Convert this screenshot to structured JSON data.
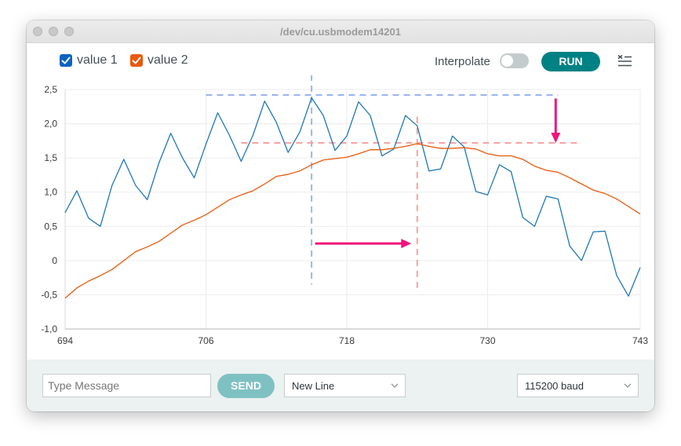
{
  "window": {
    "title": "/dev/cu.usbmodem14201"
  },
  "toolbar": {
    "legend": [
      {
        "label": "value 1",
        "color": "#1f77b4",
        "checked": true
      },
      {
        "label": "value 2",
        "color": "#e8590c",
        "checked": true
      }
    ],
    "interpolate_label": "Interpolate",
    "interpolate_on": false,
    "run_label": "RUN",
    "menu_icon": "clear-list-icon"
  },
  "chart_data": {
    "type": "line",
    "x": [
      694,
      695,
      696,
      697,
      698,
      699,
      700,
      701,
      702,
      703,
      704,
      705,
      706,
      707,
      708,
      709,
      710,
      711,
      712,
      713,
      714,
      715,
      716,
      717,
      718,
      719,
      720,
      721,
      722,
      723,
      724,
      725,
      726,
      727,
      728,
      729,
      730,
      731,
      732,
      733,
      734,
      735,
      736,
      737,
      738,
      739,
      740,
      741,
      742,
      743
    ],
    "xticks": [
      "694",
      "706",
      "718",
      "730",
      "743"
    ],
    "yticks": [
      "2,5",
      "2,0",
      "1,5",
      "1,0",
      "0,5",
      "0",
      "-0,5",
      "-1,0"
    ],
    "ylim": [
      -1.0,
      2.5
    ],
    "xlim": [
      694,
      743
    ],
    "grid": true,
    "series": [
      {
        "name": "value 1",
        "color": "#1f77b4",
        "values": [
          0.7,
          1.02,
          0.62,
          0.5,
          1.1,
          1.48,
          1.1,
          0.89,
          1.43,
          1.86,
          1.5,
          1.21,
          1.7,
          2.16,
          1.83,
          1.45,
          1.83,
          2.33,
          2.02,
          1.58,
          1.88,
          2.38,
          2.12,
          1.61,
          1.82,
          2.32,
          2.12,
          1.53,
          1.63,
          2.12,
          1.97,
          1.31,
          1.34,
          1.82,
          1.66,
          1.01,
          0.96,
          1.4,
          1.3,
          0.63,
          0.5,
          0.94,
          0.9,
          0.21,
          0.0,
          0.42,
          0.43,
          -0.22,
          -0.52,
          -0.1
        ]
      },
      {
        "name": "value 2",
        "color": "#e8590c",
        "values": [
          -0.55,
          -0.4,
          -0.3,
          -0.22,
          -0.13,
          0.0,
          0.13,
          0.2,
          0.28,
          0.4,
          0.52,
          0.59,
          0.67,
          0.78,
          0.89,
          0.96,
          1.02,
          1.12,
          1.23,
          1.26,
          1.31,
          1.4,
          1.47,
          1.49,
          1.51,
          1.56,
          1.62,
          1.62,
          1.64,
          1.67,
          1.71,
          1.67,
          1.64,
          1.64,
          1.65,
          1.63,
          1.56,
          1.53,
          1.53,
          1.48,
          1.38,
          1.32,
          1.29,
          1.21,
          1.12,
          1.03,
          0.98,
          0.9,
          0.79,
          0.68
        ]
      }
    ],
    "annotations": {
      "blue_guides": {
        "color": "#9bb3f0",
        "peak_y": 2.42,
        "start_x": 706,
        "end_x": 736,
        "vline_x": 715,
        "vline_from": -0.35,
        "vline_to": 2.72
      },
      "red_guides": {
        "color": "#f5a3a3",
        "peak_y": 1.72,
        "start_x": 709,
        "end_x": 738,
        "vline_x": 724,
        "vline_from": -0.4,
        "vline_to": 2.1
      },
      "arrow_color": "#f0157c",
      "horizontal_arrow": {
        "from_x": 715.3,
        "to_x": 723.5,
        "y": 0.25
      },
      "vertical_arrow": {
        "x": 735.8,
        "from_y": 2.37,
        "to_y": 1.72
      }
    }
  },
  "bottom": {
    "message_placeholder": "Type Message",
    "send_label": "SEND",
    "line_ending": "New Line",
    "baud": "115200 baud"
  }
}
